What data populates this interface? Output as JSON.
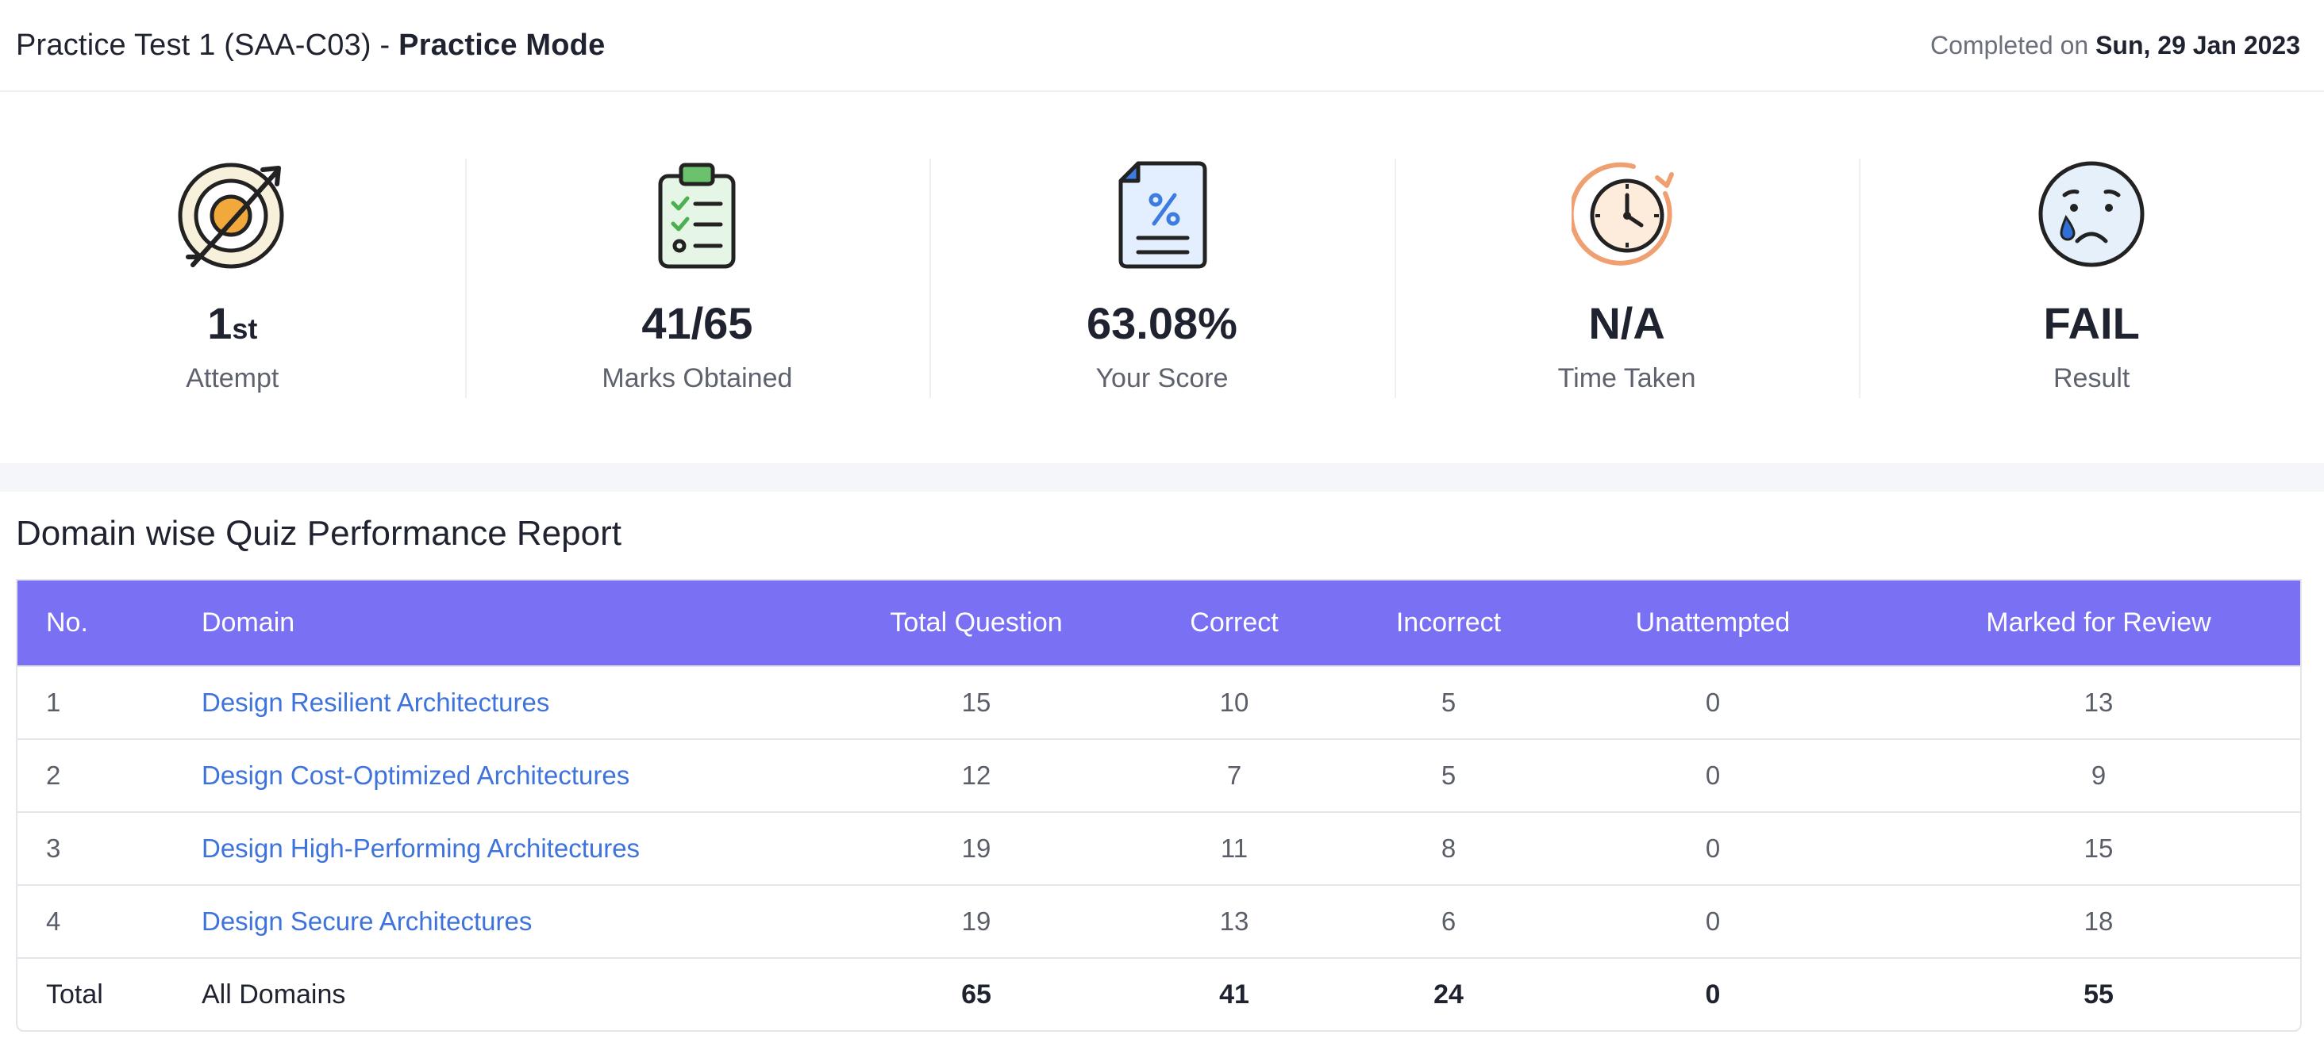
{
  "header": {
    "test_name": "Practice Test 1 (SAA-C03) - ",
    "mode": "Practice Mode",
    "completed_prefix": "Completed on ",
    "completed_date": "Sun, 29 Jan 2023"
  },
  "stats": {
    "attempt": {
      "value": "1",
      "suffix": "st",
      "label": "Attempt",
      "icon": "target-icon"
    },
    "marks": {
      "value": "41/65",
      "label": "Marks Obtained",
      "icon": "clipboard-checklist-icon"
    },
    "score": {
      "value": "63.08%",
      "label": "Your Score",
      "icon": "percent-document-icon"
    },
    "time": {
      "value": "N/A",
      "label": "Time Taken",
      "icon": "timer-icon"
    },
    "result": {
      "value": "FAIL",
      "label": "Result",
      "icon": "crying-face-icon"
    }
  },
  "report": {
    "title": "Domain wise Quiz Performance Report",
    "columns": {
      "no": "No.",
      "domain": "Domain",
      "total": "Total Question",
      "correct": "Correct",
      "incorrect": "Incorrect",
      "unattempted": "Unattempted",
      "review": "Marked for Review"
    },
    "rows": [
      {
        "no": "1",
        "domain": "Design Resilient Architectures",
        "total": "15",
        "correct": "10",
        "incorrect": "5",
        "unattempted": "0",
        "review": "13"
      },
      {
        "no": "2",
        "domain": "Design Cost-Optimized Architectures",
        "total": "12",
        "correct": "7",
        "incorrect": "5",
        "unattempted": "0",
        "review": "9"
      },
      {
        "no": "3",
        "domain": "Design High-Performing Architectures",
        "total": "19",
        "correct": "11",
        "incorrect": "8",
        "unattempted": "0",
        "review": "15"
      },
      {
        "no": "4",
        "domain": "Design Secure Architectures",
        "total": "19",
        "correct": "13",
        "incorrect": "6",
        "unattempted": "0",
        "review": "18"
      }
    ],
    "total_row": {
      "no": "Total",
      "domain": "All Domains",
      "total": "65",
      "correct": "41",
      "incorrect": "24",
      "unattempted": "0",
      "review": "55"
    }
  },
  "colors": {
    "header_bg": "#7970f3",
    "link": "#3f73dc",
    "text": "#1f2330"
  }
}
